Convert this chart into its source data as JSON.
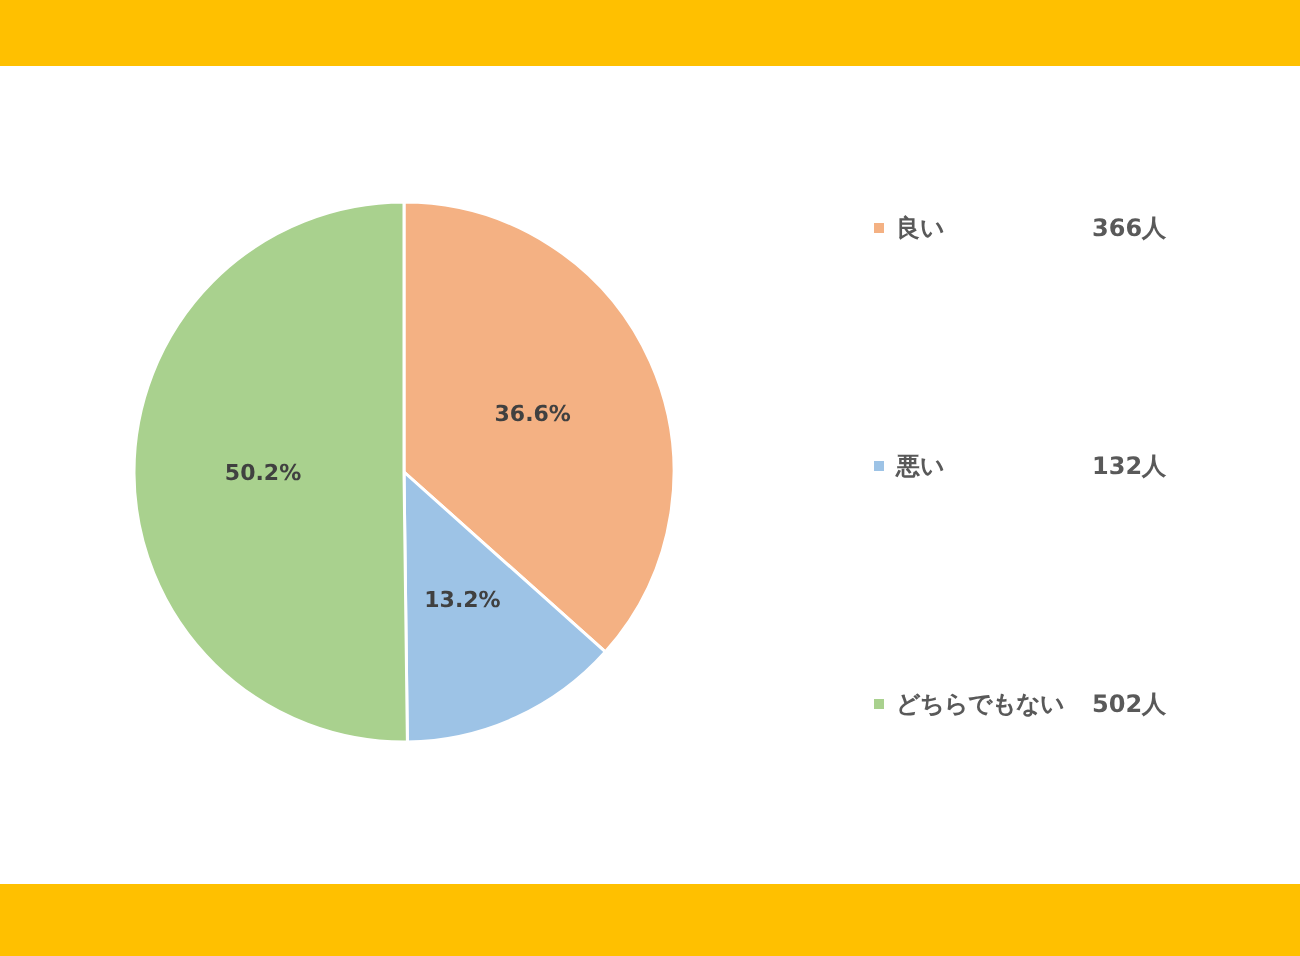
{
  "chart_data": {
    "type": "pie",
    "categories": [
      "良い",
      "悪い",
      "どちらでもない"
    ],
    "values": [
      36.6,
      13.2,
      50.2
    ],
    "colors": [
      "#f4b183",
      "#9dc3e6",
      "#a9d18e"
    ],
    "value_labels": [
      "36.6%",
      "13.2%",
      "50.2%"
    ],
    "annotations": [
      "366人",
      "132人",
      "502人"
    ],
    "legend": "right"
  }
}
